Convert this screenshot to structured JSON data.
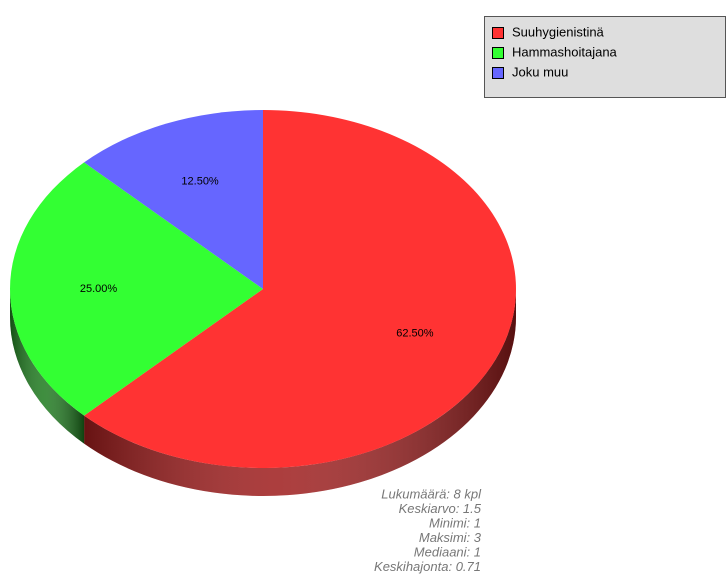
{
  "chart_data": {
    "type": "pie3d",
    "categories": [
      "Suuhygienistinä",
      "Hammashoitajana",
      "Joku muu"
    ],
    "values": [
      62.5,
      25,
      12.5
    ],
    "value_labels": [
      "62.50%",
      "25.00%",
      "12.50%"
    ],
    "colors": [
      "#ff3333",
      "#33ff33",
      "#6666ff"
    ],
    "side_colors": [
      "#9e1c1c",
      "#1d7a1d",
      "#3a3aa0"
    ],
    "legend": "top-right",
    "annotations": [
      "Lukumäärä: 8 kpl",
      "Keskiarvo: 1.5",
      "Minimi: 1",
      "Maksimi: 3",
      "Mediaani: 1",
      "Keskihajonta: 0.71"
    ]
  }
}
